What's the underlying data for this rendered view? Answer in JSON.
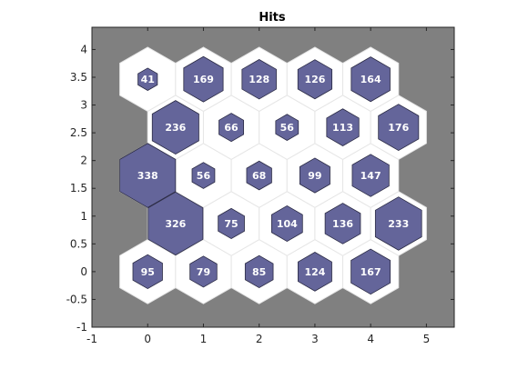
{
  "chart_data": {
    "type": "hexbin",
    "title": "Hits",
    "xlabel": "",
    "ylabel": "",
    "xlim": [
      -1,
      5.5
    ],
    "ylim": [
      -1,
      4.4
    ],
    "xticks": [
      -1,
      0,
      1,
      2,
      3,
      4,
      5
    ],
    "xtick_labels": [
      "-1",
      "0",
      "1",
      "2",
      "3",
      "4",
      "5"
    ],
    "yticks": [
      -1,
      -0.5,
      0,
      0.5,
      1,
      1.5,
      2,
      2.5,
      3,
      3.5,
      4
    ],
    "ytick_labels": [
      "-1",
      "-0.5",
      "0",
      "0.5",
      "1",
      "1.5",
      "2",
      "2.5",
      "3",
      "3.5",
      "4"
    ],
    "grid": "5x5 hexagonal",
    "colors": {
      "plot_background": "#808080",
      "cell_fill": "#ffffff",
      "cell_edge": "#e6e6e6",
      "hit_fill": "#64659a",
      "hit_edge": "#2b2b44",
      "label_color": "#ffffff"
    },
    "cells": [
      {
        "x": 0,
        "y": 0,
        "hits": 95,
        "label": "95"
      },
      {
        "x": 1,
        "y": 0,
        "hits": 79,
        "label": "79"
      },
      {
        "x": 2,
        "y": 0,
        "hits": 85,
        "label": "85"
      },
      {
        "x": 3,
        "y": 0,
        "hits": 124,
        "label": "124"
      },
      {
        "x": 4,
        "y": 0,
        "hits": 167,
        "label": "167"
      },
      {
        "x": 0.5,
        "y": 0.866,
        "hits": 326,
        "label": "326"
      },
      {
        "x": 1.5,
        "y": 0.866,
        "hits": 75,
        "label": "75"
      },
      {
        "x": 2.5,
        "y": 0.866,
        "hits": 104,
        "label": "104"
      },
      {
        "x": 3.5,
        "y": 0.866,
        "hits": 136,
        "label": "136"
      },
      {
        "x": 4.5,
        "y": 0.866,
        "hits": 233,
        "label": "233"
      },
      {
        "x": 0,
        "y": 1.732,
        "hits": 338,
        "label": "338"
      },
      {
        "x": 1,
        "y": 1.732,
        "hits": 56,
        "label": "56"
      },
      {
        "x": 2,
        "y": 1.732,
        "hits": 68,
        "label": "68"
      },
      {
        "x": 3,
        "y": 1.732,
        "hits": 99,
        "label": "99"
      },
      {
        "x": 4,
        "y": 1.732,
        "hits": 147,
        "label": "147"
      },
      {
        "x": 0.5,
        "y": 2.598,
        "hits": 236,
        "label": "236"
      },
      {
        "x": 1.5,
        "y": 2.598,
        "hits": 66,
        "label": "66"
      },
      {
        "x": 2.5,
        "y": 2.598,
        "hits": 56,
        "label": "56"
      },
      {
        "x": 3.5,
        "y": 2.598,
        "hits": 113,
        "label": "113"
      },
      {
        "x": 4.5,
        "y": 2.598,
        "hits": 176,
        "label": "176"
      },
      {
        "x": 0,
        "y": 3.464,
        "hits": 41,
        "label": "41"
      },
      {
        "x": 1,
        "y": 3.464,
        "hits": 169,
        "label": "169"
      },
      {
        "x": 2,
        "y": 3.464,
        "hits": 128,
        "label": "128"
      },
      {
        "x": 3,
        "y": 3.464,
        "hits": 126,
        "label": "126"
      },
      {
        "x": 4,
        "y": 3.464,
        "hits": 164,
        "label": "164"
      }
    ]
  }
}
